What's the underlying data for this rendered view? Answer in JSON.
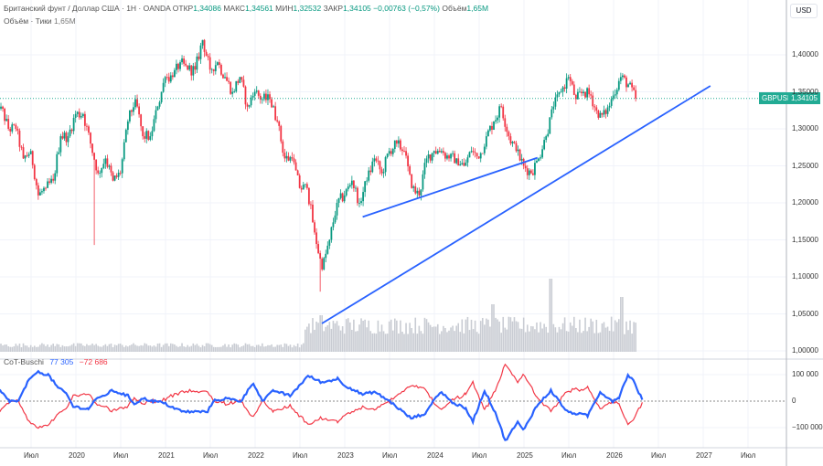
{
  "header": {
    "symbol_title": "Британский фунт / Доллар США · 1Н · OANDA",
    "open_label": "ОТКР",
    "open": "1,34086",
    "high_label": "МАКС",
    "high": "1,34561",
    "low_label": "МИН",
    "low": "1,32532",
    "close_label": "ЗАКР",
    "close": "1,34105",
    "change": "−0,00763 (−0,57%)",
    "volume_label": "Объём",
    "volume": "1,65M",
    "volume_row_label": "Объём · Тики",
    "volume_row_value": "1,65M"
  },
  "currency_button": "USD",
  "price_badge": {
    "symbol": "GBPUSD",
    "price": "1,34105"
  },
  "indicator": {
    "name": "CoT-Buschi",
    "blue_value": "77 305",
    "red_value": "−72 686"
  },
  "colors": {
    "up": "#089981",
    "down": "#f23645",
    "blue": "#2962ff",
    "red": "#f23645",
    "trendline": "#2962ff",
    "badge": "#22ab94"
  },
  "chart_data": {
    "type": "candlestick",
    "symbol": "GBPUSD",
    "price_axis": {
      "ticks": [
        "1,40000",
        "1,35000",
        "1,30000",
        "1,25000",
        "1,20000",
        "1,15000",
        "1,10000",
        "1,05000",
        "1,00000"
      ],
      "values": [
        1.4,
        1.35,
        1.3,
        1.25,
        1.2,
        1.15,
        1.1,
        1.05,
        1.0
      ]
    },
    "indicator_axis": {
      "ticks": [
        "100 000",
        "0",
        "−100 000"
      ],
      "values": [
        100,
        0,
        -100
      ]
    },
    "time_axis": [
      {
        "t": 2019.5,
        "label": "Июл"
      },
      {
        "t": 2020.0,
        "label": "2020"
      },
      {
        "t": 2020.5,
        "label": "Июл"
      },
      {
        "t": 2021.0,
        "label": "2021"
      },
      {
        "t": 2021.5,
        "label": "Июл"
      },
      {
        "t": 2022.0,
        "label": "2022"
      },
      {
        "t": 2022.5,
        "label": "Июл"
      },
      {
        "t": 2023.0,
        "label": "2023"
      },
      {
        "t": 2023.5,
        "label": "Июл"
      },
      {
        "t": 2024.0,
        "label": "2024"
      },
      {
        "t": 2024.5,
        "label": "Июл"
      },
      {
        "t": 2025.0,
        "label": "2025"
      },
      {
        "t": 2025.5,
        "label": "Июл"
      },
      {
        "t": 2026.0,
        "label": "2026"
      },
      {
        "t": 2026.5,
        "label": "Июл"
      },
      {
        "t": 2027.0,
        "label": "2027"
      },
      {
        "t": 2027.5,
        "label": "Июл"
      }
    ],
    "start": 2019.08,
    "monthly_close": [
      1.33,
      1.3,
      1.3,
      1.26,
      1.27,
      1.21,
      1.22,
      1.23,
      1.29,
      1.29,
      1.32,
      1.32,
      1.28,
      1.24,
      1.26,
      1.23,
      1.24,
      1.31,
      1.34,
      1.29,
      1.29,
      1.33,
      1.37,
      1.37,
      1.39,
      1.38,
      1.38,
      1.42,
      1.38,
      1.39,
      1.37,
      1.35,
      1.37,
      1.33,
      1.35,
      1.34,
      1.34,
      1.31,
      1.26,
      1.26,
      1.22,
      1.22,
      1.16,
      1.11,
      1.15,
      1.2,
      1.21,
      1.23,
      1.2,
      1.23,
      1.26,
      1.24,
      1.27,
      1.28,
      1.27,
      1.22,
      1.21,
      1.26,
      1.27,
      1.27,
      1.26,
      1.26,
      1.25,
      1.27,
      1.26,
      1.29,
      1.31,
      1.33,
      1.29,
      1.27,
      1.25,
      1.24,
      1.26,
      1.29,
      1.33,
      1.35,
      1.37,
      1.34,
      1.35,
      1.345,
      1.315,
      1.32,
      1.345,
      1.37,
      1.36,
      1.341
    ],
    "spike_lows": [
      {
        "t": 2020.2,
        "low": 1.143
      },
      {
        "t": 2022.73,
        "low": 1.08
      }
    ],
    "volume_regime": [
      {
        "from": 2019.08,
        "to": 2022.55,
        "level": 0.2
      },
      {
        "from": 2022.55,
        "to": 2026.25,
        "level": 0.8
      }
    ],
    "volume_spikes": [
      {
        "t": 2022.73,
        "level": 1.0
      },
      {
        "t": 2024.65,
        "level": 1.3
      },
      {
        "t": 2025.3,
        "level": 2.0
      },
      {
        "t": 2026.1,
        "level": 1.5
      }
    ],
    "trendlines": [
      {
        "t1": 2022.745,
        "p1": 1.037,
        "t2": 2027.08,
        "p2": 1.358
      },
      {
        "t1": 2023.2,
        "p1": 1.181,
        "t2": 2025.15,
        "p2": 1.261
      }
    ],
    "current_price": 1.34105,
    "cot_blue": [
      [
        2019.15,
        40
      ],
      [
        2019.26,
        0
      ],
      [
        2019.36,
        0
      ],
      [
        2019.46,
        70
      ],
      [
        2019.56,
        110
      ],
      [
        2019.69,
        100
      ],
      [
        2019.8,
        50
      ],
      [
        2019.89,
        30
      ],
      [
        2019.97,
        -20
      ],
      [
        2020.14,
        -30
      ],
      [
        2020.2,
        0
      ],
      [
        2020.41,
        40
      ],
      [
        2020.58,
        20
      ],
      [
        2020.65,
        -10
      ],
      [
        2020.75,
        10
      ],
      [
        2020.86,
        0
      ],
      [
        2020.96,
        -5
      ],
      [
        2021.19,
        -40
      ],
      [
        2021.33,
        -40
      ],
      [
        2021.47,
        -40
      ],
      [
        2021.53,
        0
      ],
      [
        2021.67,
        10
      ],
      [
        2021.84,
        0
      ],
      [
        2021.98,
        70
      ],
      [
        2022.08,
        0
      ],
      [
        2022.21,
        40
      ],
      [
        2022.39,
        20
      ],
      [
        2022.59,
        95
      ],
      [
        2022.75,
        70
      ],
      [
        2022.92,
        85
      ],
      [
        2023.0,
        60
      ],
      [
        2023.2,
        25
      ],
      [
        2023.33,
        35
      ],
      [
        2023.5,
        0
      ],
      [
        2023.74,
        -65
      ],
      [
        2023.91,
        -45
      ],
      [
        2023.98,
        0
      ],
      [
        2024.08,
        35
      ],
      [
        2024.18,
        0
      ],
      [
        2024.35,
        -30
      ],
      [
        2024.43,
        -75
      ],
      [
        2024.56,
        40
      ],
      [
        2024.69,
        -50
      ],
      [
        2024.79,
        -150
      ],
      [
        2024.93,
        -80
      ],
      [
        2024.99,
        -110
      ],
      [
        2025.14,
        -20
      ],
      [
        2025.3,
        40
      ],
      [
        2025.48,
        -40
      ],
      [
        2025.71,
        -55
      ],
      [
        2025.85,
        35
      ],
      [
        2025.99,
        0
      ],
      [
        2026.06,
        15
      ],
      [
        2026.16,
        100
      ],
      [
        2026.32,
        5
      ],
      [
        2026.22,
        77.3
      ]
    ],
    "cot_red_factor": -0.92
  }
}
